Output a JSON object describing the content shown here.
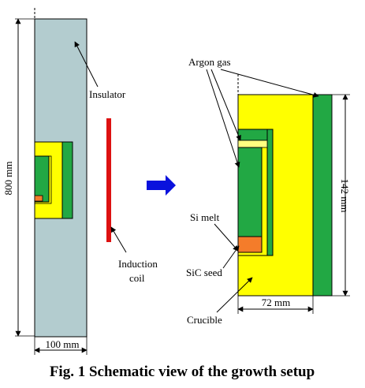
{
  "colors": {
    "insulator": "#b3cccf",
    "crucible": "#ffff00",
    "graphite": "#22a844",
    "seed": "#f47c2a",
    "coil": "#dd1111",
    "arrow": "#0a12dd",
    "line": "#000000"
  },
  "labels": {
    "insulator": "Insulator",
    "argon_gas": "Argon gas",
    "induction_coil_line1": "Induction",
    "induction_coil_line2": "coil",
    "si_melt": "Si melt",
    "sic_seed": "SiC seed",
    "crucible": "Crucible"
  },
  "dimensions": {
    "height_left": "800 mm",
    "width_left": "100 mm",
    "height_right": "142 mm",
    "width_right": "72 mm"
  },
  "caption": "Fig. 1 Schematic view of the growth setup"
}
